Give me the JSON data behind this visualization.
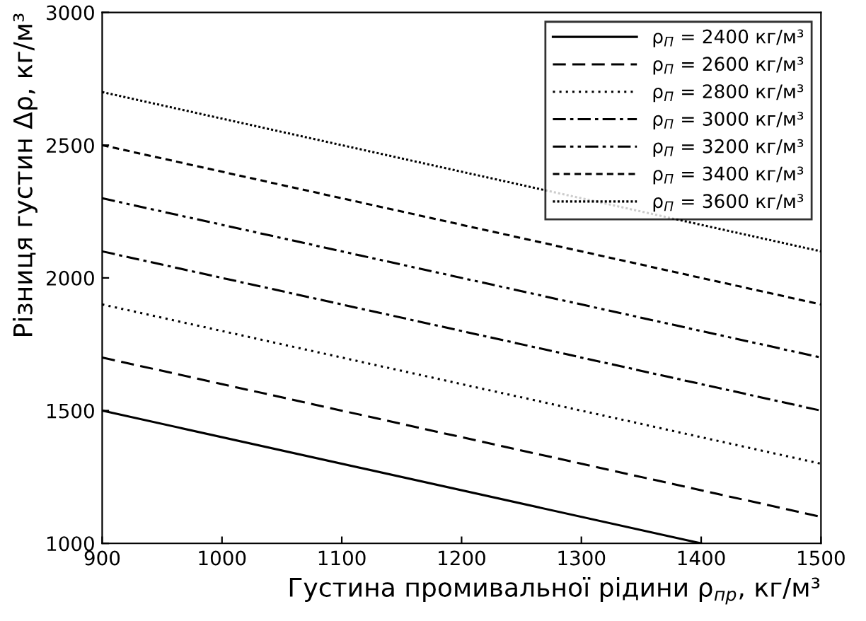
{
  "chart_data": {
    "type": "line",
    "xlabel": "Густина промивальної рідини ρ$_{пр}$, кг/м³",
    "ylabel": "Різниця густин Δρ, кг/м³",
    "xlim": [
      900,
      1500
    ],
    "xticks": [
      900,
      1000,
      1100,
      1200,
      1300,
      1400,
      1500
    ],
    "ylim": [
      1000,
      3000
    ],
    "yticks": [
      1000,
      1500,
      2000,
      2500,
      3000
    ],
    "grid": false,
    "legend": "top right",
    "marker": "none",
    "series": [
      {
        "name": "ρ$_{П}$ = 2400 кг/м³",
        "color": "#000000",
        "line_style": "solid",
        "x": [
          900,
          1400
        ],
        "values": [
          1500,
          1000
        ]
      },
      {
        "name": "ρ$_{П}$ = 2600 кг/м³",
        "color": "#000000",
        "line_style": "dashed",
        "x": [
          900,
          1500
        ],
        "values": [
          1700,
          1100
        ]
      },
      {
        "name": "ρ$_{П}$ = 2800 кг/м³",
        "color": "#000000",
        "line_style": "dotted",
        "x": [
          900,
          1500
        ],
        "values": [
          1900,
          1300
        ]
      },
      {
        "name": "ρ$_{П}$ = 3000 кг/м³",
        "color": "#000000",
        "line_style": "dashdot",
        "x": [
          900,
          1500
        ],
        "values": [
          2100,
          1500
        ]
      },
      {
        "name": "ρ$_{П}$ = 3200 кг/м³",
        "color": "#000000",
        "line_style": "dashdotdot",
        "x": [
          900,
          1500
        ],
        "values": [
          2300,
          1700
        ]
      },
      {
        "name": "ρ$_{П}$ = 3400 кг/м³",
        "color": "#000000",
        "line_style": "shortdash",
        "x": [
          900,
          1500
        ],
        "values": [
          2500,
          1900
        ]
      },
      {
        "name": "ρ$_{П}$ = 3600 кг/м³",
        "color": "#000000",
        "line_style": "densedot",
        "x": [
          900,
          1500
        ],
        "values": [
          2700,
          2100
        ]
      }
    ]
  }
}
